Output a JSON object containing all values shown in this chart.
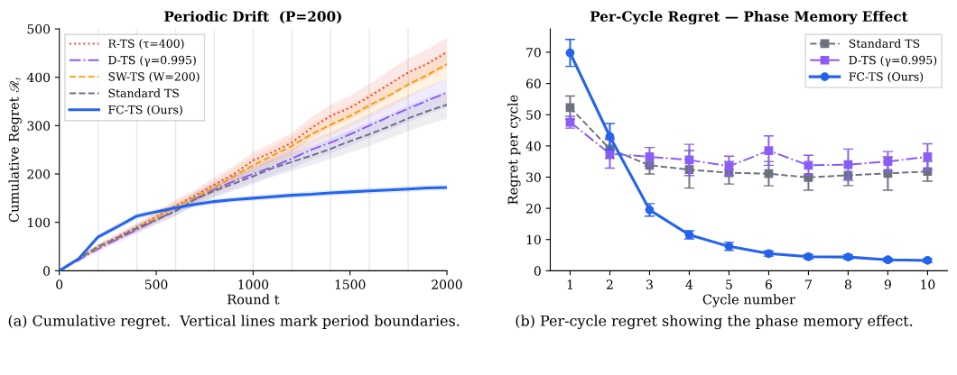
{
  "chart_data": [
    {
      "type": "line",
      "title": "Periodic Drift  (P=200)",
      "xlabel": "Round t",
      "ylabel": "Cumulative Regret ℛ$_{t}$",
      "x": [
        0,
        100,
        200,
        300,
        400,
        500,
        600,
        700,
        800,
        900,
        1000,
        1100,
        1200,
        1300,
        1400,
        1500,
        1600,
        1700,
        1800,
        1900,
        2000
      ],
      "series": [
        {
          "name": "R-TS (τ=400)",
          "color": "#e8413c",
          "line_style": "dotted",
          "values": [
            0,
            25,
            50,
            70,
            90,
            112,
            135,
            155,
            178,
            200,
            228,
            245,
            265,
            295,
            320,
            337,
            360,
            385,
            410,
            428,
            452
          ],
          "lower": [
            0,
            22,
            45,
            63,
            82,
            102,
            123,
            142,
            163,
            184,
            210,
            226,
            245,
            273,
            297,
            313,
            334,
            357,
            381,
            398,
            420
          ],
          "upper": [
            0,
            28,
            55,
            77,
            98,
            122,
            147,
            168,
            193,
            216,
            246,
            264,
            285,
            317,
            343,
            361,
            386,
            413,
            439,
            458,
            482
          ]
        },
        {
          "name": "D-TS (γ=0.995)",
          "color": "#8b5cf6",
          "line_style": "dashdot",
          "values": [
            0,
            22,
            45,
            65,
            85,
            105,
            125,
            148,
            168,
            185,
            200,
            215,
            232,
            250,
            265,
            282,
            300,
            318,
            335,
            352,
            368
          ],
          "lower": [
            0,
            19,
            40,
            58,
            77,
            96,
            114,
            135,
            153,
            169,
            183,
            197,
            212,
            229,
            243,
            258,
            275,
            291,
            307,
            323,
            338
          ],
          "upper": [
            0,
            25,
            50,
            72,
            93,
            114,
            136,
            161,
            183,
            201,
            217,
            233,
            252,
            271,
            287,
            306,
            325,
            345,
            363,
            381,
            398
          ]
        },
        {
          "name": "SW-TS (W=200)",
          "color": "#f59e0b",
          "line_style": "dashed",
          "values": [
            0,
            24,
            48,
            68,
            88,
            110,
            132,
            152,
            172,
            195,
            218,
            238,
            258,
            282,
            302,
            320,
            342,
            362,
            385,
            405,
            427
          ],
          "lower": [
            0,
            21,
            43,
            62,
            80,
            100,
            121,
            140,
            158,
            179,
            201,
            219,
            238,
            260,
            279,
            296,
            317,
            336,
            358,
            377,
            398
          ],
          "upper": [
            0,
            27,
            53,
            74,
            96,
            120,
            143,
            164,
            186,
            211,
            235,
            257,
            278,
            304,
            325,
            344,
            367,
            388,
            412,
            433,
            456
          ]
        },
        {
          "name": "Standard TS",
          "color": "#6b7280",
          "line_style": "dashed",
          "values": [
            0,
            24,
            50,
            68,
            88,
            105,
            123,
            148,
            165,
            180,
            195,
            212,
            225,
            238,
            252,
            268,
            282,
            298,
            315,
            330,
            343
          ],
          "lower": [
            0,
            21,
            45,
            62,
            80,
            96,
            113,
            136,
            151,
            165,
            179,
            194,
            206,
            218,
            231,
            245,
            258,
            273,
            288,
            302,
            314
          ],
          "upper": [
            0,
            27,
            55,
            74,
            96,
            114,
            133,
            160,
            179,
            195,
            211,
            230,
            244,
            258,
            273,
            291,
            306,
            323,
            342,
            358,
            372
          ]
        },
        {
          "name": "FC-TS (Ours)",
          "color": "#2563eb",
          "line_style": "solid",
          "values": [
            0,
            25,
            70,
            91,
            113,
            122,
            130,
            137,
            143,
            147,
            150,
            153,
            156,
            158,
            161,
            163,
            165,
            167,
            169,
            171,
            172
          ],
          "lower": [
            0,
            22,
            65,
            85,
            107,
            116,
            124,
            131,
            137,
            141,
            144,
            147,
            150,
            152,
            155,
            157,
            159,
            161,
            163,
            165,
            166
          ],
          "upper": [
            0,
            28,
            75,
            97,
            119,
            128,
            136,
            143,
            149,
            153,
            156,
            159,
            162,
            164,
            167,
            169,
            171,
            173,
            175,
            177,
            178
          ]
        }
      ],
      "xlim": [
        0,
        2000
      ],
      "ylim": [
        0,
        500
      ],
      "xticks": [
        0,
        500,
        1000,
        1500,
        2000
      ],
      "yticks": [
        0,
        100,
        200,
        300,
        400,
        500
      ],
      "ref_lines": [
        {
          "axis": "x",
          "value": 200,
          "color": "#e5e7eb"
        },
        {
          "axis": "x",
          "value": 400,
          "color": "#e5e7eb"
        },
        {
          "axis": "x",
          "value": 600,
          "color": "#e5e7eb"
        },
        {
          "axis": "x",
          "value": 800,
          "color": "#e5e7eb"
        },
        {
          "axis": "x",
          "value": 1000,
          "color": "#e5e7eb"
        },
        {
          "axis": "x",
          "value": 1200,
          "color": "#e5e7eb"
        },
        {
          "axis": "x",
          "value": 1400,
          "color": "#e5e7eb"
        },
        {
          "axis": "x",
          "value": 1600,
          "color": "#e5e7eb"
        },
        {
          "axis": "x",
          "value": 1800,
          "color": "#e5e7eb"
        }
      ],
      "legend": "top left",
      "grid": false,
      "marker": "none",
      "annotations": [
        "(a) Cumulative regret.  Vertical lines mark period boundaries."
      ]
    },
    {
      "type": "line",
      "title": "Per-Cycle Regret — Phase Memory Effect",
      "xlabel": "Cycle number",
      "ylabel": "Regret per cycle",
      "x": [
        1,
        2,
        3,
        4,
        5,
        6,
        7,
        8,
        9,
        10
      ],
      "series": [
        {
          "name": "Standard TS",
          "color": "#6b7280",
          "line_style": "dashed",
          "marker": "square",
          "values": [
            52.3,
            39,
            33.8,
            32.4,
            31.4,
            31.1,
            29.9,
            30.6,
            31.2,
            31.8
          ],
          "errors": [
            [
              48.5,
              56
            ],
            [
              36,
              42.5
            ],
            [
              31,
              33.8
            ],
            [
              26.5,
              38.5
            ],
            [
              27.8,
              35
            ],
            [
              27.2,
              35
            ],
            [
              25.8,
              29.9
            ],
            [
              27.3,
              30.6
            ],
            [
              25.8,
              36.5
            ],
            [
              28.7,
              35
            ]
          ]
        },
        {
          "name": "D-TS (γ=0.995)",
          "color": "#8b5cf6",
          "line_style": "dashdot",
          "marker": "square",
          "values": [
            47.6,
            37.5,
            36.5,
            35.5,
            33.5,
            38.5,
            33.8,
            34,
            35,
            36.5
          ],
          "errors": [
            [
              45.7,
              49.5
            ],
            [
              32.9,
              42
            ],
            [
              33.5,
              39.5
            ],
            [
              30.5,
              40.5
            ],
            [
              30.5,
              36.7
            ],
            [
              33.8,
              43.2
            ],
            [
              30.6,
              37
            ],
            [
              29,
              39
            ],
            [
              31.8,
              38.2
            ],
            [
              32.3,
              40.7
            ]
          ]
        },
        {
          "name": "FC-TS (Ours)",
          "color": "#2563eb",
          "line_style": "solid",
          "marker": "circle",
          "values": [
            69.8,
            43,
            19.5,
            11.5,
            7.8,
            5.5,
            4.5,
            4.4,
            3.5,
            3.3
          ],
          "errors": [
            4.3,
            4.2,
            2,
            1.3,
            1.3,
            0.8,
            0.7,
            0.7,
            0.6,
            0.6
          ]
        }
      ],
      "xlim": [
        0.5,
        10.5
      ],
      "ylim": [
        0,
        77.5
      ],
      "xticks": [
        1,
        2,
        3,
        4,
        5,
        6,
        7,
        8,
        9,
        10
      ],
      "yticks": [
        0,
        10,
        20,
        30,
        40,
        50,
        60,
        70
      ],
      "legend": "top right",
      "grid": false,
      "annotations": [
        "(b) Per-cycle regret showing the phase memory effect."
      ]
    }
  ]
}
